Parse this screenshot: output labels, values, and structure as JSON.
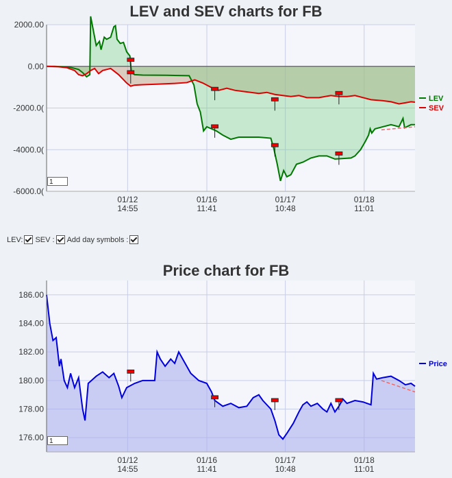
{
  "chart_data": [
    {
      "type": "line",
      "title": "LEV and SEV charts for FB",
      "ylim": [
        -6000,
        2000
      ],
      "yticks": [
        "2000.00",
        "0.00",
        "-2000.0(",
        "-4000.0(",
        "-6000.0("
      ],
      "ytick_values": [
        2000,
        0,
        -2000,
        -4000,
        -6000
      ],
      "xticks": [
        {
          "date": "01/12",
          "time": "14:55"
        },
        {
          "date": "01/16",
          "time": "11:41"
        },
        {
          "date": "01/17",
          "time": "10:48"
        },
        {
          "date": "01/18",
          "time": "11:01"
        }
      ],
      "grid": true,
      "legend_placement": "right",
      "series": [
        {
          "name": "LEV",
          "color": "#007700",
          "points": [
            [
              0,
              0
            ],
            [
              10,
              0
            ],
            [
              20,
              -20
            ],
            [
              30,
              -50
            ],
            [
              40,
              -150
            ],
            [
              45,
              -300
            ],
            [
              50,
              -500
            ],
            [
              54,
              -400
            ],
            [
              55,
              2400
            ],
            [
              58,
              1800
            ],
            [
              62,
              1000
            ],
            [
              66,
              1200
            ],
            [
              68,
              800
            ],
            [
              72,
              1400
            ],
            [
              75,
              1300
            ],
            [
              80,
              1400
            ],
            [
              84,
              1900
            ],
            [
              86,
              1950
            ],
            [
              88,
              1300
            ],
            [
              92,
              1100
            ],
            [
              96,
              1150
            ],
            [
              100,
              700
            ],
            [
              104,
              500
            ],
            [
              106,
              -300
            ],
            [
              110,
              -400
            ],
            [
              120,
              -420
            ],
            [
              150,
              -430
            ],
            [
              178,
              -450
            ],
            [
              184,
              -900
            ],
            [
              188,
              -1800
            ],
            [
              192,
              -2200
            ],
            [
              196,
              -3100
            ],
            [
              200,
              -2900
            ],
            [
              206,
              -3000
            ],
            [
              212,
              -3100
            ],
            [
              220,
              -3300
            ],
            [
              230,
              -3500
            ],
            [
              240,
              -3400
            ],
            [
              250,
              -3400
            ],
            [
              265,
              -3400
            ],
            [
              280,
              -3450
            ],
            [
              284,
              -4000
            ],
            [
              288,
              -4700
            ],
            [
              292,
              -5500
            ],
            [
              296,
              -5000
            ],
            [
              300,
              -5300
            ],
            [
              305,
              -5200
            ],
            [
              312,
              -4700
            ],
            [
              320,
              -4600
            ],
            [
              330,
              -4400
            ],
            [
              340,
              -4300
            ],
            [
              350,
              -4300
            ],
            [
              360,
              -4450
            ],
            [
              380,
              -4400
            ],
            [
              385,
              -4300
            ],
            [
              392,
              -4000
            ],
            [
              398,
              -3600
            ],
            [
              402,
              -3300
            ],
            [
              404,
              -3000
            ],
            [
              406,
              -3200
            ],
            [
              410,
              -3000
            ],
            [
              420,
              -2900
            ],
            [
              430,
              -2800
            ],
            [
              440,
              -2900
            ],
            [
              445,
              -2500
            ],
            [
              447,
              -2950
            ],
            [
              455,
              -2800
            ],
            [
              460,
              -2800
            ]
          ]
        },
        {
          "name": "SEV",
          "color": "#dd0000",
          "points": [
            [
              0,
              0
            ],
            [
              15,
              -20
            ],
            [
              25,
              -60
            ],
            [
              35,
              -200
            ],
            [
              40,
              -400
            ],
            [
              45,
              -450
            ],
            [
              50,
              -350
            ],
            [
              55,
              -200
            ],
            [
              60,
              -100
            ],
            [
              65,
              -350
            ],
            [
              70,
              -200
            ],
            [
              75,
              -150
            ],
            [
              80,
              -100
            ],
            [
              85,
              -250
            ],
            [
              90,
              -400
            ],
            [
              95,
              -600
            ],
            [
              100,
              -800
            ],
            [
              105,
              -950
            ],
            [
              110,
              -900
            ],
            [
              120,
              -880
            ],
            [
              140,
              -850
            ],
            [
              160,
              -820
            ],
            [
              175,
              -780
            ],
            [
              185,
              -650
            ],
            [
              195,
              -800
            ],
            [
              205,
              -1000
            ],
            [
              215,
              -1150
            ],
            [
              225,
              -1050
            ],
            [
              235,
              -1150
            ],
            [
              245,
              -1200
            ],
            [
              255,
              -1250
            ],
            [
              265,
              -1300
            ],
            [
              275,
              -1250
            ],
            [
              285,
              -1350
            ],
            [
              295,
              -1400
            ],
            [
              305,
              -1450
            ],
            [
              315,
              -1400
            ],
            [
              325,
              -1500
            ],
            [
              340,
              -1500
            ],
            [
              355,
              -1400
            ],
            [
              365,
              -1450
            ],
            [
              375,
              -1450
            ],
            [
              385,
              -1400
            ],
            [
              395,
              -1500
            ],
            [
              405,
              -1600
            ],
            [
              420,
              -1650
            ],
            [
              430,
              -1700
            ],
            [
              440,
              -1800
            ],
            [
              448,
              -1750
            ],
            [
              455,
              -1700
            ],
            [
              460,
              -1720
            ]
          ]
        }
      ],
      "day_symbol_x": [
        105,
        210,
        285,
        365
      ],
      "trend_line": [
        [
          418,
          -3050
        ],
        [
          460,
          -2900
        ]
      ],
      "zoom_value": "1"
    },
    {
      "type": "line",
      "title": "Price chart for FB",
      "ylim": [
        175,
        187
      ],
      "yticks": [
        "186.00",
        "184.00",
        "182.00",
        "180.00",
        "178.00",
        "176.00"
      ],
      "ytick_values": [
        186,
        184,
        182,
        180,
        178,
        176
      ],
      "xticks": [
        {
          "date": "01/12",
          "time": "14:55"
        },
        {
          "date": "01/16",
          "time": "11:41"
        },
        {
          "date": "01/17",
          "time": "10:48"
        },
        {
          "date": "01/18",
          "time": "11:01"
        }
      ],
      "grid": true,
      "legend_placement": "right",
      "series": [
        {
          "name": "Price",
          "color": "#0000dd",
          "points": [
            [
              0,
              186
            ],
            [
              4,
              184
            ],
            [
              8,
              182.8
            ],
            [
              12,
              183
            ],
            [
              16,
              181
            ],
            [
              18,
              181.5
            ],
            [
              22,
              180
            ],
            [
              26,
              179.5
            ],
            [
              30,
              180.5
            ],
            [
              35,
              179.5
            ],
            [
              40,
              180.2
            ],
            [
              45,
              178
            ],
            [
              48,
              177.2
            ],
            [
              52,
              179.8
            ],
            [
              56,
              180
            ],
            [
              62,
              180.3
            ],
            [
              70,
              180.6
            ],
            [
              78,
              180.2
            ],
            [
              84,
              180.5
            ],
            [
              90,
              179.6
            ],
            [
              94,
              178.8
            ],
            [
              100,
              179.5
            ],
            [
              110,
              179.8
            ],
            [
              120,
              180
            ],
            [
              130,
              180
            ],
            [
              135,
              180
            ],
            [
              138,
              182
            ],
            [
              142,
              181.5
            ],
            [
              148,
              181
            ],
            [
              155,
              181.5
            ],
            [
              160,
              181.2
            ],
            [
              165,
              182
            ],
            [
              170,
              181.5
            ],
            [
              180,
              180.5
            ],
            [
              190,
              180
            ],
            [
              200,
              179.8
            ],
            [
              206,
              179.2
            ],
            [
              210,
              178.6
            ],
            [
              220,
              178.2
            ],
            [
              230,
              178.4
            ],
            [
              240,
              178.1
            ],
            [
              250,
              178.2
            ],
            [
              258,
              178.8
            ],
            [
              265,
              179
            ],
            [
              270,
              178.6
            ],
            [
              280,
              178
            ],
            [
              285,
              177.2
            ],
            [
              290,
              176.2
            ],
            [
              295,
              175.9
            ],
            [
              300,
              176.3
            ],
            [
              308,
              177
            ],
            [
              315,
              177.8
            ],
            [
              320,
              178.3
            ],
            [
              325,
              178.5
            ],
            [
              330,
              178.2
            ],
            [
              338,
              178.4
            ],
            [
              345,
              178
            ],
            [
              350,
              177.8
            ],
            [
              355,
              178.4
            ],
            [
              360,
              177.8
            ],
            [
              365,
              178.2
            ],
            [
              370,
              178.7
            ],
            [
              375,
              178.4
            ],
            [
              385,
              178.6
            ],
            [
              395,
              178.5
            ],
            [
              405,
              178.3
            ],
            [
              408,
              180.5
            ],
            [
              412,
              180.1
            ],
            [
              420,
              180.2
            ],
            [
              430,
              180.3
            ],
            [
              440,
              180
            ],
            [
              448,
              179.7
            ],
            [
              455,
              179.8
            ],
            [
              460,
              179.6
            ]
          ]
        }
      ],
      "day_symbol_x": [
        105,
        210,
        285,
        365
      ],
      "day_symbol_y": [
        180.6,
        178.8,
        178.6,
        178.6
      ],
      "trend_line": [
        [
          418,
          180
        ],
        [
          460,
          179.2
        ]
      ],
      "zoom_value": "1"
    }
  ],
  "controls": {
    "lev_label": "LEV:",
    "sev_label": "SEV :",
    "day_symbols_label": "Add day symbols :"
  }
}
